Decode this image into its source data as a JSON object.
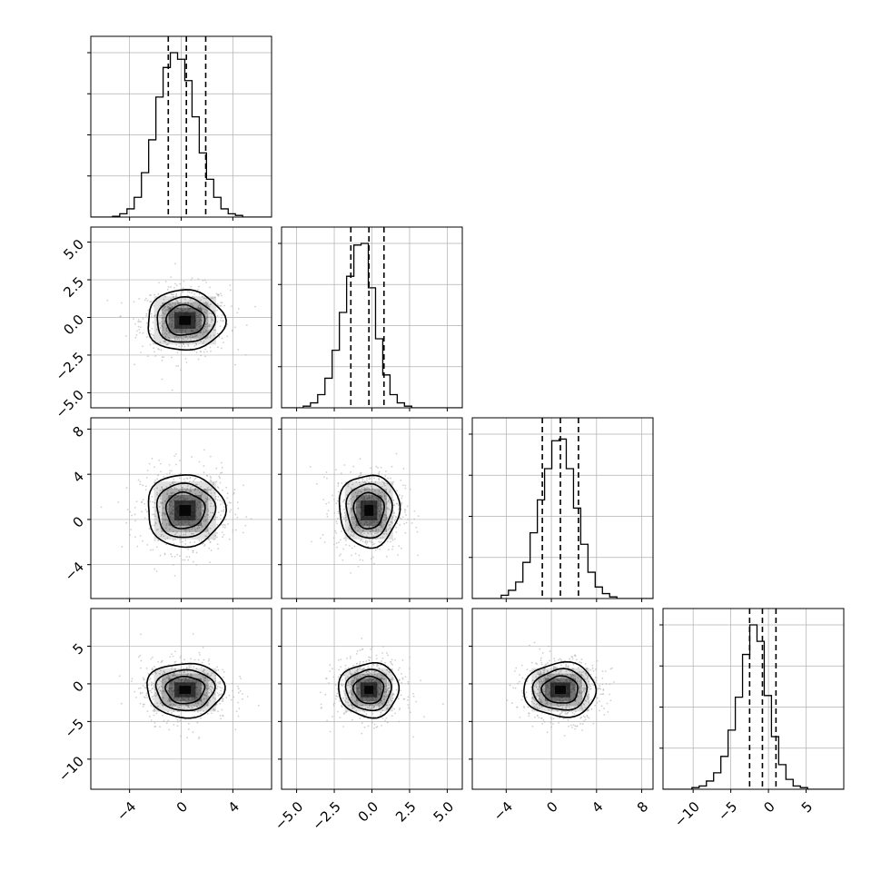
{
  "chart_data": {
    "type": "corner",
    "grid": true,
    "params": [
      {
        "index": 0,
        "range": [
          -7,
          7
        ],
        "ticks": [
          -4,
          0,
          4
        ],
        "tick_labels": [
          "−4",
          "0",
          "4"
        ],
        "mean": 0.3,
        "sigma": 1.5,
        "quantiles": [
          -1.0,
          0.4,
          1.9
        ]
      },
      {
        "index": 1,
        "range": [
          -6,
          6
        ],
        "ticks": [
          -5.0,
          -2.5,
          0.0,
          2.5,
          5.0
        ],
        "tick_labels": [
          "−5.0",
          "−2.5",
          "0.0",
          "2.5",
          "5.0"
        ],
        "mean": -0.2,
        "sigma": 1.0,
        "quantiles": [
          -1.4,
          -0.2,
          0.8
        ]
      },
      {
        "index": 2,
        "range": [
          -7,
          9
        ],
        "ticks": [
          -4,
          0,
          4,
          8
        ],
        "tick_labels": [
          "−4",
          "0",
          "4",
          "8"
        ],
        "mean": 0.8,
        "sigma": 1.6,
        "quantiles": [
          -0.8,
          0.8,
          2.4
        ]
      },
      {
        "index": 3,
        "range": [
          -14,
          10
        ],
        "ticks": [
          -10,
          -5,
          0,
          5
        ],
        "tick_labels": [
          "−10",
          "−5",
          "0",
          "5"
        ],
        "mean": -0.8,
        "sigma": 1.8,
        "quantiles": [
          -2.5,
          -0.8,
          1.0
        ]
      }
    ],
    "diagonal_histograms": [
      [
        0,
        0,
        0,
        0.005,
        0.02,
        0.05,
        0.12,
        0.27,
        0.47,
        0.73,
        0.91,
        1.0,
        0.96,
        0.83,
        0.61,
        0.39,
        0.23,
        0.12,
        0.05,
        0.02,
        0.01,
        0,
        0,
        0,
        0
      ],
      [
        0,
        0,
        0,
        0.01,
        0.03,
        0.08,
        0.18,
        0.35,
        0.58,
        0.8,
        0.99,
        1.0,
        0.73,
        0.42,
        0.2,
        0.08,
        0.03,
        0.01,
        0,
        0,
        0,
        0,
        0,
        0,
        0
      ],
      [
        0,
        0,
        0,
        0,
        0.02,
        0.05,
        0.1,
        0.22,
        0.4,
        0.6,
        0.79,
        0.96,
        0.97,
        0.79,
        0.55,
        0.33,
        0.16,
        0.07,
        0.03,
        0.01,
        0,
        0,
        0,
        0,
        0
      ],
      [
        0,
        0,
        0,
        0,
        0.01,
        0.02,
        0.05,
        0.1,
        0.2,
        0.36,
        0.56,
        0.82,
        1.0,
        0.9,
        0.57,
        0.32,
        0.15,
        0.06,
        0.02,
        0.01,
        0,
        0,
        0,
        0,
        0
      ]
    ],
    "contour_levels": [
      "1.0 sigma",
      "1.5 sigma",
      "2.0 sigma"
    ],
    "colors": {
      "histogram": "#000000",
      "quantile_line": "#000000",
      "scatter": "#b0b0b0",
      "density": "#000000",
      "contour": "#000000",
      "grid": "#b0b0b0"
    }
  }
}
